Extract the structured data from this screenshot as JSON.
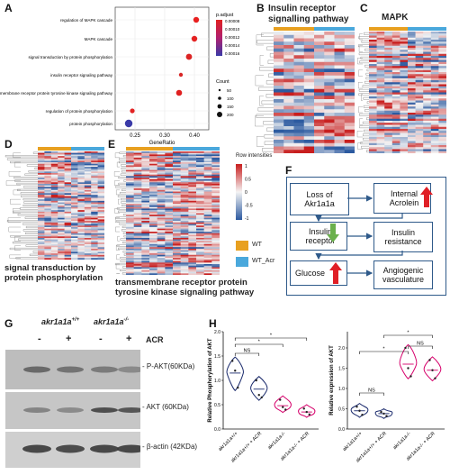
{
  "panels": {
    "A": "A",
    "B": "B",
    "C": "C",
    "D": "D",
    "E": "E",
    "F": "F",
    "G": "G",
    "H": "H"
  },
  "panel_a": {
    "xlabel": "GeneRatio",
    "legend_padj_title": "p.adjust",
    "legend_padj_values": [
      "0.00008",
      "0.00010",
      "0.00012",
      "0.00014",
      "0.00016"
    ],
    "legend_count_title": "Count",
    "legend_count_values": [
      "50",
      "100",
      "150",
      "200"
    ],
    "colors": {
      "low": "#e02020",
      "high": "#3a3aa8"
    }
  },
  "heatmaps": {
    "b_title": "Insulin receptor signalling pathway",
    "c_title": "MAPK",
    "d_caption": "signal transduction by protein phosphorylation",
    "e_caption": "transmembrane receptor protein tyrosine kinase signaling pathway",
    "scale_title": "Row intensities",
    "scale_values": [
      "1",
      "0.5",
      "0",
      "-0.5",
      "-1"
    ],
    "group_wt": "WT",
    "group_acr": "WT_Acr",
    "wt_color": "#e8a020",
    "acr_color": "#4aa8dc"
  },
  "flow": {
    "box1": "Loss of Akr1a1a",
    "box2": "Internal Acrolein",
    "box3": "Insulin receptor",
    "box4": "Insulin resistance",
    "box5": "Glucose",
    "box6": "Angiogenic vasculature"
  },
  "blot": {
    "genotype_wt": "akr1a1a",
    "genotype_wt_sup": "+/+",
    "genotype_ko": "akr1a1a",
    "genotype_ko_sup": "-/-",
    "acr": "ACR",
    "minus": "-",
    "plus": "+",
    "band1": "- P-AKT(60KDa)",
    "band2": "- AKT (60KDa)",
    "band3": "- β-actin (42KDa)"
  },
  "chart_data": [
    {
      "type": "violin",
      "ylabel": "Relative Phosphorylation of AKT",
      "ylim": [
        0,
        2.0
      ],
      "categories": [
        "akr1a1a+/+",
        "akr1a1a+/+ + ACR",
        "akr1a1a-/-",
        "akr1a1a-/- + ACR"
      ],
      "series": [
        {
          "values": [
            1.15,
            0.82,
            0.48,
            0.35
          ]
        }
      ],
      "points": [
        [
          1.4,
          1.2,
          0.85
        ],
        [
          1.0,
          0.7,
          0.65
        ],
        [
          0.6,
          0.45,
          0.4
        ],
        [
          0.42,
          0.35,
          0.3
        ]
      ],
      "colors": [
        "#1a2a6c",
        "#1a2a6c",
        "#d6006b",
        "#d6006b"
      ],
      "annotations": [
        "NS",
        "*",
        "*"
      ]
    },
    {
      "type": "violin",
      "ylabel": "Relative expression of AKT",
      "ylim": [
        0,
        2.4
      ],
      "categories": [
        "akr1a1a+/+",
        "akr1a1a+/+ + ACR",
        "akr1a1a-/-",
        "akr1a1a-/- + ACR"
      ],
      "series": [
        {
          "values": [
            0.45,
            0.38,
            1.6,
            1.45
          ]
        }
      ],
      "points": [
        [
          0.55,
          0.45,
          0.35
        ],
        [
          0.42,
          0.38,
          0.32
        ],
        [
          2.0,
          1.5,
          1.3
        ],
        [
          1.7,
          1.45,
          1.25
        ]
      ],
      "colors": [
        "#1a2a6c",
        "#1a2a6c",
        "#d6006b",
        "#d6006b"
      ],
      "annotations": [
        "NS",
        "NS",
        "*",
        "*"
      ]
    }
  ]
}
